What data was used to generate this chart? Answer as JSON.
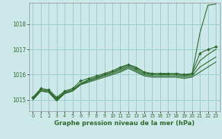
{
  "title": "Graphe pression niveau de la mer (hPa)",
  "background_color": "#cce8e8",
  "grid_color": "#99cccc",
  "line_color": "#2d6a2d",
  "marker_color": "#2d6a2d",
  "xlim": [
    -0.5,
    23.5
  ],
  "ylim": [
    1014.55,
    1018.85
  ],
  "yticks": [
    1015,
    1016,
    1017,
    1018
  ],
  "xticks": [
    0,
    1,
    2,
    3,
    4,
    5,
    6,
    7,
    8,
    9,
    10,
    11,
    12,
    13,
    14,
    15,
    16,
    17,
    18,
    19,
    20,
    21,
    22,
    23
  ],
  "series": [
    {
      "x": [
        0,
        1,
        2,
        3,
        4,
        5,
        6,
        7,
        8,
        9,
        10,
        11,
        12,
        13,
        14,
        15,
        16,
        17,
        18,
        19,
        20,
        21,
        22,
        23
      ],
      "y": [
        1015.05,
        1015.4,
        1015.35,
        1015.0,
        1015.3,
        1015.4,
        1015.65,
        1015.75,
        1015.85,
        1016.0,
        1016.1,
        1016.25,
        1016.4,
        1016.3,
        1016.1,
        1016.0,
        1016.0,
        1016.05,
        1016.05,
        1016.0,
        1016.0,
        1017.65,
        1018.75,
        1018.8
      ],
      "marker": false
    },
    {
      "x": [
        0,
        1,
        2,
        3,
        4,
        5,
        6,
        7,
        8,
        9,
        10,
        11,
        12,
        13,
        14,
        15,
        16,
        17,
        18,
        19,
        20,
        21,
        22,
        23
      ],
      "y": [
        1015.1,
        1015.45,
        1015.4,
        1015.1,
        1015.35,
        1015.45,
        1015.75,
        1015.85,
        1015.95,
        1016.05,
        1016.15,
        1016.3,
        1016.4,
        1016.25,
        1016.1,
        1016.05,
        1016.05,
        1016.05,
        1016.05,
        1016.0,
        1016.05,
        1016.85,
        1017.0,
        1017.1
      ],
      "marker": true
    },
    {
      "x": [
        0,
        1,
        2,
        3,
        4,
        5,
        6,
        7,
        8,
        9,
        10,
        11,
        12,
        13,
        14,
        15,
        16,
        17,
        18,
        19,
        20,
        21,
        22,
        23
      ],
      "y": [
        1015.05,
        1015.4,
        1015.35,
        1015.05,
        1015.3,
        1015.4,
        1015.65,
        1015.8,
        1015.9,
        1016.0,
        1016.1,
        1016.2,
        1016.35,
        1016.2,
        1016.05,
        1016.0,
        1016.0,
        1016.0,
        1016.0,
        1015.95,
        1016.0,
        1016.55,
        1016.8,
        1017.0
      ],
      "marker": false
    },
    {
      "x": [
        0,
        1,
        2,
        3,
        4,
        5,
        6,
        7,
        8,
        9,
        10,
        11,
        12,
        13,
        14,
        15,
        16,
        17,
        18,
        19,
        20,
        21,
        22,
        23
      ],
      "y": [
        1015.0,
        1015.35,
        1015.3,
        1015.0,
        1015.25,
        1015.35,
        1015.6,
        1015.75,
        1015.85,
        1015.95,
        1016.05,
        1016.15,
        1016.3,
        1016.15,
        1016.0,
        1015.95,
        1015.95,
        1015.95,
        1015.95,
        1015.9,
        1015.95,
        1016.3,
        1016.5,
        1016.7
      ],
      "marker": false
    },
    {
      "x": [
        0,
        1,
        2,
        3,
        4,
        5,
        6,
        7,
        8,
        9,
        10,
        11,
        12,
        13,
        14,
        15,
        16,
        17,
        18,
        19,
        20,
        21,
        22,
        23
      ],
      "y": [
        1015.0,
        1015.35,
        1015.3,
        1014.95,
        1015.25,
        1015.35,
        1015.6,
        1015.7,
        1015.8,
        1015.9,
        1016.0,
        1016.1,
        1016.25,
        1016.1,
        1015.95,
        1015.9,
        1015.9,
        1015.9,
        1015.9,
        1015.85,
        1015.9,
        1016.1,
        1016.3,
        1016.5
      ],
      "marker": false
    }
  ]
}
